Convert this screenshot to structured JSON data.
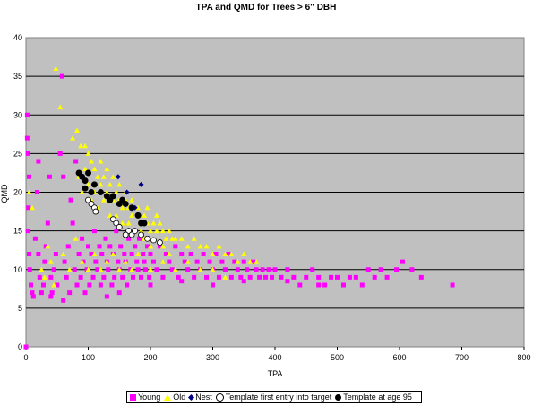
{
  "colors": {
    "plot_bg": "#c0c0c0",
    "young": "#ff00ff",
    "old": "#ffff00",
    "nest": "#000080",
    "template_first": "#ffffff",
    "template_95": "#000000"
  },
  "chart_data": {
    "type": "scatter",
    "title": "TPA and QMD for Trees > 6\" DBH",
    "xlabel": "TPA",
    "ylabel": "QMD",
    "xlim": [
      0,
      800
    ],
    "ylim": [
      0,
      40
    ],
    "xticks": [
      "0",
      "100",
      "200",
      "300",
      "400",
      "500",
      "600",
      "700",
      "800"
    ],
    "yticks": [
      "0",
      "5",
      "10",
      "15",
      "20",
      "25",
      "30",
      "35",
      "40"
    ],
    "grid": "horizontal",
    "legend": "bottom",
    "series": [
      {
        "name": "Young",
        "marker": "square",
        "color": "#ff00ff",
        "points": [
          [
            0,
            0
          ],
          [
            2,
            30
          ],
          [
            2,
            27
          ],
          [
            3,
            25
          ],
          [
            5,
            22
          ],
          [
            4,
            18
          ],
          [
            3,
            15
          ],
          [
            5,
            12
          ],
          [
            6,
            10
          ],
          [
            8,
            8
          ],
          [
            10,
            7
          ],
          [
            12,
            6.5
          ],
          [
            15,
            14
          ],
          [
            18,
            20
          ],
          [
            20,
            24
          ],
          [
            20,
            12
          ],
          [
            22,
            9
          ],
          [
            25,
            7
          ],
          [
            28,
            8
          ],
          [
            30,
            11
          ],
          [
            32,
            13
          ],
          [
            35,
            16
          ],
          [
            38,
            22
          ],
          [
            40,
            9
          ],
          [
            42,
            7
          ],
          [
            45,
            10
          ],
          [
            48,
            12
          ],
          [
            50,
            8
          ],
          [
            55,
            25
          ],
          [
            58,
            35
          ],
          [
            60,
            22
          ],
          [
            62,
            11
          ],
          [
            65,
            9
          ],
          [
            68,
            13
          ],
          [
            70,
            7
          ],
          [
            72,
            19
          ],
          [
            75,
            16
          ],
          [
            78,
            10
          ],
          [
            80,
            24
          ],
          [
            82,
            8
          ],
          [
            85,
            12
          ],
          [
            88,
            9
          ],
          [
            90,
            14
          ],
          [
            92,
            11
          ],
          [
            95,
            7
          ],
          [
            98,
            10
          ],
          [
            100,
            13
          ],
          [
            102,
            8
          ],
          [
            105,
            12
          ],
          [
            108,
            9
          ],
          [
            110,
            15
          ],
          [
            112,
            11
          ],
          [
            115,
            10
          ],
          [
            118,
            13
          ],
          [
            120,
            8
          ],
          [
            122,
            12
          ],
          [
            125,
            9
          ],
          [
            128,
            14
          ],
          [
            130,
            11
          ],
          [
            132,
            10
          ],
          [
            135,
            13
          ],
          [
            138,
            8
          ],
          [
            140,
            12
          ],
          [
            142,
            9
          ],
          [
            145,
            15
          ],
          [
            148,
            11
          ],
          [
            150,
            10
          ],
          [
            152,
            13
          ],
          [
            155,
            9
          ],
          [
            158,
            12
          ],
          [
            160,
            11
          ],
          [
            162,
            8
          ],
          [
            165,
            14
          ],
          [
            168,
            10
          ],
          [
            170,
            12
          ],
          [
            172,
            9
          ],
          [
            175,
            13
          ],
          [
            178,
            11
          ],
          [
            180,
            10
          ],
          [
            182,
            14
          ],
          [
            185,
            9
          ],
          [
            188,
            12
          ],
          [
            190,
            11
          ],
          [
            192,
            10
          ],
          [
            195,
            13
          ],
          [
            198,
            9
          ],
          [
            200,
            12
          ],
          [
            205,
            11
          ],
          [
            210,
            10
          ],
          [
            215,
            13
          ],
          [
            220,
            9
          ],
          [
            225,
            12
          ],
          [
            230,
            11
          ],
          [
            235,
            10
          ],
          [
            240,
            13
          ],
          [
            245,
            9
          ],
          [
            250,
            12
          ],
          [
            255,
            11
          ],
          [
            260,
            10
          ],
          [
            265,
            12
          ],
          [
            270,
            9
          ],
          [
            275,
            11
          ],
          [
            280,
            10
          ],
          [
            285,
            12
          ],
          [
            290,
            9
          ],
          [
            295,
            11
          ],
          [
            300,
            10
          ],
          [
            305,
            12
          ],
          [
            310,
            9
          ],
          [
            315,
            11
          ],
          [
            320,
            10
          ],
          [
            325,
            12
          ],
          [
            330,
            9
          ],
          [
            335,
            11
          ],
          [
            340,
            10
          ],
          [
            345,
            9
          ],
          [
            350,
            11
          ],
          [
            355,
            10
          ],
          [
            360,
            9
          ],
          [
            365,
            11
          ],
          [
            370,
            10
          ],
          [
            375,
            9
          ],
          [
            380,
            10
          ],
          [
            385,
            9
          ],
          [
            390,
            10
          ],
          [
            395,
            9
          ],
          [
            400,
            10
          ],
          [
            410,
            9
          ],
          [
            420,
            10
          ],
          [
            430,
            9
          ],
          [
            440,
            8
          ],
          [
            450,
            9
          ],
          [
            460,
            10
          ],
          [
            470,
            9
          ],
          [
            480,
            8
          ],
          [
            490,
            9
          ],
          [
            500,
            9
          ],
          [
            510,
            8
          ],
          [
            520,
            9
          ],
          [
            530,
            9
          ],
          [
            540,
            8
          ],
          [
            550,
            10
          ],
          [
            560,
            9
          ],
          [
            570,
            10
          ],
          [
            580,
            9
          ],
          [
            595,
            10
          ],
          [
            605,
            11
          ],
          [
            620,
            10
          ],
          [
            635,
            9
          ],
          [
            685,
            8
          ],
          [
            130,
            6.5
          ],
          [
            150,
            7
          ],
          [
            60,
            6
          ],
          [
            40,
            6.5
          ],
          [
            200,
            8
          ],
          [
            250,
            8.5
          ],
          [
            300,
            8
          ],
          [
            350,
            8.5
          ],
          [
            420,
            8.5
          ],
          [
            470,
            8
          ]
        ]
      },
      {
        "name": "Old",
        "marker": "triangle",
        "color": "#ffff00",
        "points": [
          [
            48,
            36
          ],
          [
            55,
            31
          ],
          [
            75,
            27
          ],
          [
            82,
            28
          ],
          [
            88,
            26
          ],
          [
            95,
            26
          ],
          [
            100,
            25
          ],
          [
            105,
            24
          ],
          [
            110,
            23
          ],
          [
            115,
            22
          ],
          [
            120,
            21
          ],
          [
            125,
            22
          ],
          [
            130,
            20
          ],
          [
            135,
            21
          ],
          [
            140,
            19
          ],
          [
            145,
            20
          ],
          [
            150,
            19
          ],
          [
            155,
            18
          ],
          [
            160,
            19
          ],
          [
            165,
            18
          ],
          [
            170,
            17
          ],
          [
            175,
            18
          ],
          [
            180,
            17
          ],
          [
            185,
            16
          ],
          [
            190,
            17
          ],
          [
            195,
            16
          ],
          [
            200,
            15
          ],
          [
            205,
            16
          ],
          [
            210,
            15
          ],
          [
            215,
            16
          ],
          [
            220,
            15
          ],
          [
            225,
            14
          ],
          [
            230,
            15
          ],
          [
            235,
            14
          ],
          [
            240,
            14
          ],
          [
            250,
            14
          ],
          [
            260,
            13
          ],
          [
            270,
            14
          ],
          [
            280,
            13
          ],
          [
            290,
            13
          ],
          [
            300,
            12
          ],
          [
            310,
            13
          ],
          [
            320,
            12
          ],
          [
            330,
            12
          ],
          [
            340,
            11
          ],
          [
            350,
            12
          ],
          [
            360,
            11
          ],
          [
            370,
            11
          ],
          [
            85,
            22
          ],
          [
            90,
            20
          ],
          [
            95,
            23
          ],
          [
            100,
            21
          ],
          [
            105,
            19
          ],
          [
            110,
            20
          ],
          [
            115,
            18
          ],
          [
            120,
            24
          ],
          [
            125,
            19
          ],
          [
            130,
            23
          ],
          [
            135,
            17
          ],
          [
            140,
            22
          ],
          [
            145,
            17
          ],
          [
            150,
            21
          ],
          [
            155,
            16
          ],
          [
            160,
            20
          ],
          [
            165,
            16
          ],
          [
            170,
            19
          ],
          [
            175,
            15
          ],
          [
            180,
            18
          ],
          [
            185,
            15
          ],
          [
            190,
            14
          ],
          [
            195,
            18
          ],
          [
            200,
            13
          ],
          [
            210,
            17
          ],
          [
            220,
            13
          ],
          [
            230,
            12
          ],
          [
            60,
            12
          ],
          [
            70,
            10
          ],
          [
            80,
            14
          ],
          [
            90,
            11
          ],
          [
            100,
            10
          ],
          [
            110,
            12
          ],
          [
            120,
            10
          ],
          [
            130,
            11
          ],
          [
            140,
            12
          ],
          [
            150,
            10
          ],
          [
            160,
            11
          ],
          [
            170,
            10
          ],
          [
            180,
            12
          ],
          [
            200,
            10
          ],
          [
            220,
            11
          ],
          [
            240,
            10
          ],
          [
            260,
            11
          ],
          [
            280,
            10
          ],
          [
            300,
            10
          ],
          [
            320,
            9
          ],
          [
            30,
            9
          ],
          [
            40,
            11
          ],
          [
            45,
            8
          ],
          [
            25,
            10
          ],
          [
            35,
            13
          ],
          [
            10,
            18
          ],
          [
            5,
            20
          ]
        ]
      },
      {
        "name": "Nest",
        "marker": "diamond",
        "color": "#000080",
        "points": [
          [
            148,
            22
          ],
          [
            162,
            20
          ],
          [
            185,
            21
          ],
          [
            175,
            18
          ],
          [
            190,
            16
          ]
        ]
      },
      {
        "name": "Template first entry into target",
        "marker": "circle-open",
        "color": "#ffffff",
        "points": [
          [
            100,
            19
          ],
          [
            105,
            18.5
          ],
          [
            110,
            18
          ],
          [
            112,
            17.5
          ],
          [
            140,
            16.5
          ],
          [
            145,
            16
          ],
          [
            150,
            15.5
          ],
          [
            165,
            15
          ],
          [
            170,
            14.5
          ],
          [
            175,
            15
          ],
          [
            185,
            14.5
          ],
          [
            195,
            14
          ],
          [
            205,
            13.8
          ],
          [
            215,
            13.5
          ],
          [
            160,
            14.5
          ]
        ]
      },
      {
        "name": "Template at age 95",
        "marker": "circle",
        "color": "#000000",
        "points": [
          [
            85,
            22.5
          ],
          [
            90,
            22
          ],
          [
            95,
            21.5
          ],
          [
            100,
            22.5
          ],
          [
            110,
            21
          ],
          [
            95,
            20.5
          ],
          [
            105,
            20
          ],
          [
            120,
            20
          ],
          [
            130,
            19.5
          ],
          [
            135,
            19
          ],
          [
            140,
            19.5
          ],
          [
            150,
            18.5
          ],
          [
            155,
            19
          ],
          [
            160,
            18.5
          ],
          [
            170,
            18
          ],
          [
            180,
            17
          ],
          [
            185,
            16
          ],
          [
            190,
            16
          ]
        ]
      }
    ]
  }
}
